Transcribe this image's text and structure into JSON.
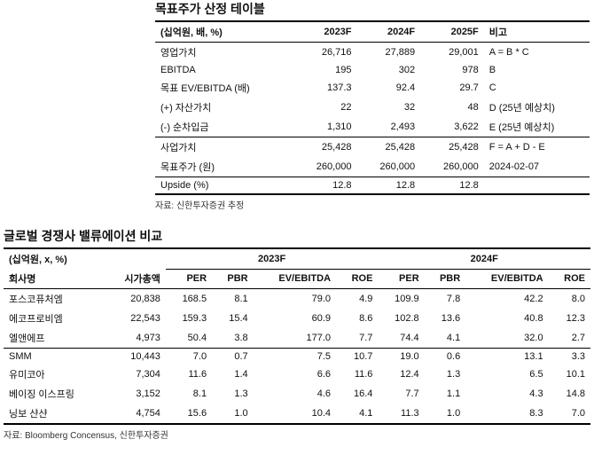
{
  "table1": {
    "title": "목표주가 산정 테이블",
    "unit": "(십억원, 배, %)",
    "headers": [
      "2023F",
      "2024F",
      "2025F",
      "비고"
    ],
    "rows": [
      {
        "label": "영업가치",
        "c": [
          "26,716",
          "27,889",
          "29,001",
          "A = B * C"
        ]
      },
      {
        "label": "EBITDA",
        "c": [
          "195",
          "302",
          "978",
          "B"
        ]
      },
      {
        "label": "목표 EV/EBITDA (배)",
        "c": [
          "137.3",
          "92.4",
          "29.7",
          "C"
        ]
      },
      {
        "label": "(+) 자산가치",
        "c": [
          "22",
          "32",
          "48",
          "D (25년 예상치)"
        ]
      },
      {
        "label": "(-) 순차입금",
        "c": [
          "1,310",
          "2,493",
          "3,622",
          "E (25년 예상치)"
        ]
      },
      {
        "label": "사업가치",
        "c": [
          "25,428",
          "25,428",
          "25,428",
          "F = A + D - E"
        ]
      },
      {
        "label": "목표주가 (원)",
        "c": [
          "260,000",
          "260,000",
          "260,000",
          "2024-02-07"
        ]
      },
      {
        "label": "Upside (%)",
        "c": [
          "12.8",
          "12.8",
          "12.8",
          ""
        ]
      }
    ],
    "source": "자료: 신한투자증권 추정"
  },
  "table2": {
    "title": "글로벌 경쟁사 밸류에이션 비교",
    "unit": "(십억원, x, %)",
    "group_headers": [
      "2023F",
      "2024F"
    ],
    "col1": "회사명",
    "col2": "시가총액",
    "sub_headers": [
      "PER",
      "PBR",
      "EV/EBITDA",
      "ROE",
      "PER",
      "PBR",
      "EV/EBITDA",
      "ROE"
    ],
    "rows": [
      {
        "name": "포스코퓨처엠",
        "cap": "20,838",
        "v": [
          "168.5",
          "8.1",
          "79.0",
          "4.9",
          "109.9",
          "7.8",
          "42.2",
          "8.0"
        ]
      },
      {
        "name": "에코프로비엠",
        "cap": "22,543",
        "v": [
          "159.3",
          "15.4",
          "60.9",
          "8.6",
          "102.8",
          "13.6",
          "40.8",
          "12.3"
        ]
      },
      {
        "name": "엘앤에프",
        "cap": "4,973",
        "v": [
          "50.4",
          "3.8",
          "177.0",
          "7.7",
          "74.4",
          "4.1",
          "32.0",
          "2.7"
        ]
      },
      {
        "name": "SMM",
        "cap": "10,443",
        "v": [
          "7.0",
          "0.7",
          "7.5",
          "10.7",
          "19.0",
          "0.6",
          "13.1",
          "3.3"
        ]
      },
      {
        "name": "유미코아",
        "cap": "7,304",
        "v": [
          "11.6",
          "1.4",
          "6.6",
          "11.6",
          "12.4",
          "1.3",
          "6.5",
          "10.1"
        ]
      },
      {
        "name": "베이징 이스프링",
        "cap": "3,152",
        "v": [
          "8.1",
          "1.3",
          "4.6",
          "16.4",
          "7.7",
          "1.1",
          "4.3",
          "14.8"
        ]
      },
      {
        "name": "닝보 샨샨",
        "cap": "4,754",
        "v": [
          "15.6",
          "1.0",
          "10.4",
          "4.1",
          "11.3",
          "1.0",
          "8.3",
          "7.0"
        ]
      }
    ],
    "source": "자료: Bloomberg Concensus, 신한투자증권"
  }
}
